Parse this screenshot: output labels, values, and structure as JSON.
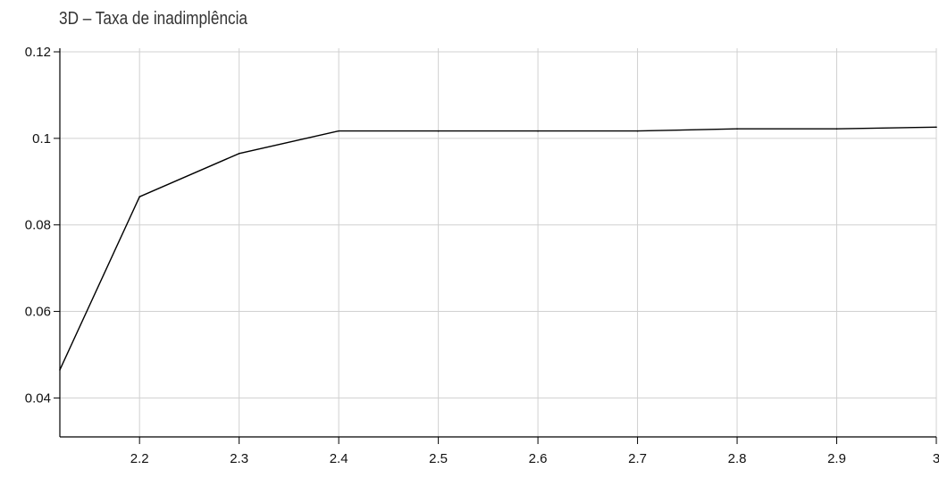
{
  "chart_data": {
    "type": "line",
    "title": "3D – Taxa de inadimplência",
    "xlabel": "",
    "ylabel": "",
    "x": [
      2.12,
      2.2,
      2.3,
      2.4,
      2.5,
      2.6,
      2.7,
      2.8,
      2.9,
      3.0
    ],
    "series": [
      {
        "values": [
          0.0465,
          0.0865,
          0.0965,
          0.1017,
          0.1017,
          0.1017,
          0.1017,
          0.1022,
          0.1022,
          0.1026
        ]
      }
    ],
    "xlim": [
      2.12,
      3.0
    ],
    "ylim": [
      0.031,
      0.12
    ],
    "x_ticks": [
      2.2,
      2.3,
      2.4,
      2.5,
      2.6,
      2.7,
      2.8,
      2.9,
      3.0
    ],
    "x_tick_labels": [
      "2.2",
      "2.3",
      "2.4",
      "2.5",
      "2.6",
      "2.7",
      "2.8",
      "2.9",
      "3"
    ],
    "y_ticks": [
      0.04,
      0.06,
      0.08,
      0.1,
      0.12
    ],
    "y_tick_labels": [
      "0.04",
      "0.06",
      "0.08",
      "0.1",
      "0.12"
    ],
    "grid": true,
    "line_color": "#000000",
    "grid_color": "#d0d0d0",
    "axis_color": "#000000"
  }
}
